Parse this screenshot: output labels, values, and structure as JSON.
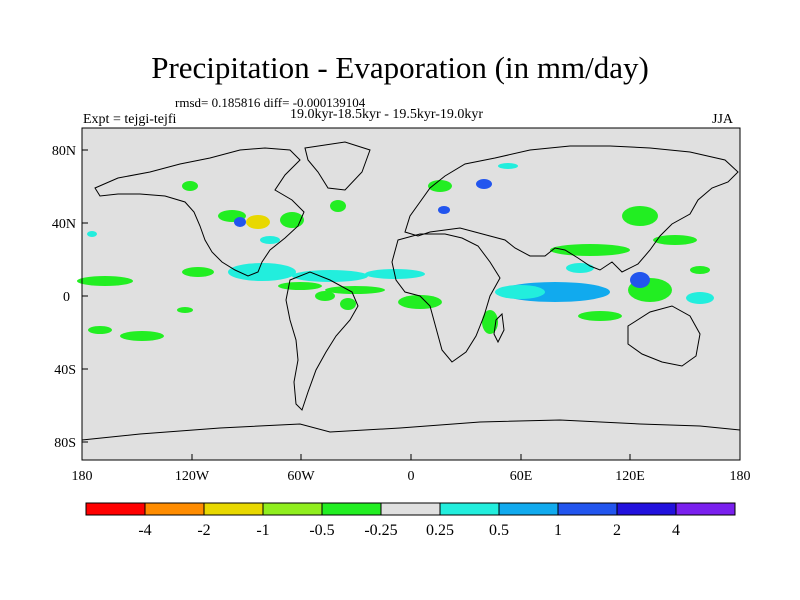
{
  "title": "Precipitation - Evaporation (in mm/day)",
  "stats": "rmsd= 0.185816 diff= -0.000139104",
  "period": "19.0kyr-18.5kyr - 19.5kyr-19.0kyr",
  "experiment": "Expt = tejgi-tejfi",
  "season": "JJA",
  "axes": {
    "lon_ticks": [
      "180",
      "120W",
      "60W",
      "0",
      "60E",
      "120E",
      "180"
    ],
    "lat_ticks": [
      "80N",
      "40N",
      "0",
      "40S",
      "80S"
    ]
  },
  "colorbar": {
    "labels": [
      "-4",
      "-2",
      "-1",
      "-0.5",
      "-0.25",
      "0.25",
      "0.5",
      "1",
      "2",
      "4"
    ],
    "colors": [
      "#ff0000",
      "#ff8c00",
      "#e8d800",
      "#90ee1e",
      "#22ee22",
      "#e0e0e0",
      "#22eedd",
      "#11aaee",
      "#2255ee",
      "#2211dd",
      "#7a20ee"
    ]
  },
  "colors": {
    "map_background": "#e0e0e0",
    "coastline": "#000000"
  }
}
